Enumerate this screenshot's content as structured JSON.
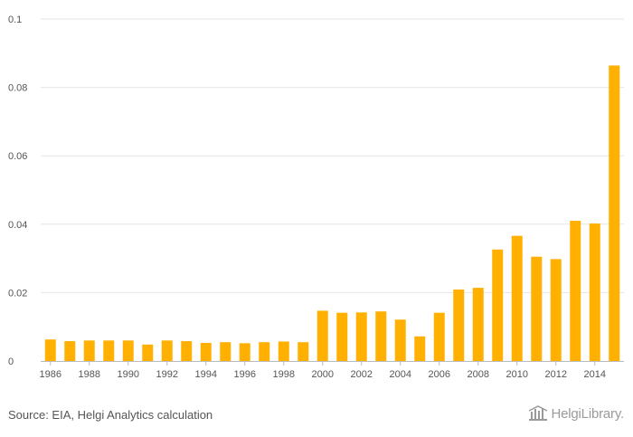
{
  "chart_data": {
    "type": "bar",
    "categories": [
      "1986",
      "1987",
      "1988",
      "1989",
      "1990",
      "1991",
      "1992",
      "1993",
      "1994",
      "1995",
      "1996",
      "1997",
      "1998",
      "1999",
      "2000",
      "2001",
      "2002",
      "2003",
      "2004",
      "2005",
      "2006",
      "2007",
      "2008",
      "2009",
      "2010",
      "2011",
      "2012",
      "2013",
      "2014",
      "2015"
    ],
    "x_tick_labels": [
      "1986",
      "1988",
      "1990",
      "1992",
      "1994",
      "1996",
      "1998",
      "2000",
      "2002",
      "2004",
      "2006",
      "2008",
      "2010",
      "2012",
      "2014"
    ],
    "values": [
      0.0063,
      0.0058,
      0.006,
      0.006,
      0.006,
      0.0048,
      0.006,
      0.0058,
      0.0053,
      0.0055,
      0.0052,
      0.0055,
      0.0057,
      0.0055,
      0.0147,
      0.0141,
      0.0142,
      0.0145,
      0.0121,
      0.0072,
      0.0141,
      0.0209,
      0.0214,
      0.0326,
      0.0366,
      0.0305,
      0.0298,
      0.041,
      0.0402,
      0.0864
    ],
    "y_ticks": [
      "0",
      "0.02",
      "0.04",
      "0.06",
      "0.08",
      "0.1"
    ],
    "ylim": [
      0,
      0.1
    ],
    "grid": true,
    "bar_color": "#FFB000"
  },
  "footer": {
    "source": "Source: EIA, Helgi Analytics calculation",
    "logo_text": "HelgiLibrary."
  },
  "colors": {
    "grid": "#e6e6e6",
    "axis": "#bbbbbb",
    "text": "#555555",
    "logo": "#9a9a9a"
  }
}
